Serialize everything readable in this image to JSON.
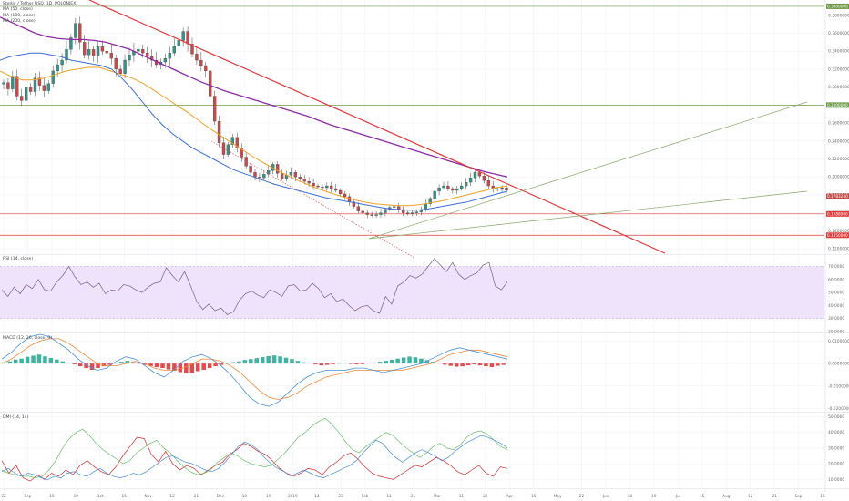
{
  "colors": {
    "bg": "#ffffff",
    "grid": "#eef0f4",
    "axis_text": "#6b6b6b",
    "up": "#3a8f86",
    "down": "#c54b4b",
    "wick": "#444444",
    "ma50": "#3d6fd6",
    "ma100": "#f2a124",
    "ma200": "#8e2aa6",
    "trend_red": "#e03a3a",
    "trend_dotted": "#e05a5a",
    "trend_green": "#8aa86a",
    "hline_green": "#6e9b4a",
    "hline_red": "#e03a3a",
    "rsi_line": "#7a5c8a",
    "rsi_band": "#efe2fb",
    "macd_line": "#4a90d9",
    "signal_line": "#f08a3a",
    "hist_up": "#3fb3a0",
    "hist_down": "#e24b4b",
    "dmi_green": "#6bbf6b",
    "dmi_red": "#d42a2a",
    "dmi_blue": "#4a90d9"
  },
  "legend": {
    "title": "Stellar / Tether USD, 1D, POLONIEX",
    "ma50": "MA (50, close)",
    "ma100": "MA (100, close)",
    "ma200": "MA (200, close)"
  },
  "panes": {
    "rsi_title": "RSI (14, close)",
    "macd_title": "MACD (12, 26, close, 9)",
    "dmi_title": "DMI (14, 14)"
  },
  "price_axis": {
    "ticks": [
      "0.3800000",
      "0.3600000",
      "0.3400000",
      "0.3200000",
      "0.3000000",
      "0.2800000",
      "0.2600000",
      "0.2400000",
      "0.2200000",
      "0.2000000",
      "0.1800000",
      "0.1600000",
      "0.1400000",
      "0.1200000"
    ],
    "top_label": "0.3900000",
    "level_green": "0.2800000",
    "current": "0.1783240",
    "level_red_1": "0.1588000",
    "level_red_2": "0.1350000"
  },
  "rsi_axis": {
    "ticks": [
      "70.0000",
      "60.0000",
      "50.0000",
      "40.0000",
      "30.0000",
      "20.0000"
    ]
  },
  "macd_axis": {
    "ticks": [
      "0.0100000",
      "0.0000000",
      "-0.0100000",
      "-0.0200000"
    ]
  },
  "dmi_axis": {
    "ticks": [
      "50.0000",
      "40.0000",
      "30.0000",
      "20.0000",
      "10.0000"
    ]
  },
  "time_axis": {
    "labels": [
      "22",
      "Sep",
      "10",
      "19",
      "Oct",
      "15",
      "Nov",
      "12",
      "21",
      "Dec",
      "10",
      "19",
      "2019",
      "14",
      "23",
      "Feb",
      "11",
      "21",
      "Mar",
      "11",
      "20",
      "Apr",
      "15",
      "May",
      "22",
      "Jun",
      "10",
      "19",
      "Jul",
      "15",
      "Aug",
      "12",
      "21",
      "Sep",
      "16"
    ]
  },
  "chart_data": [
    {
      "type": "candlestick",
      "title": "Stellar / Tether USD, 1D, POLONIEX",
      "series": [
        {
          "name": "MA (50, close)"
        },
        {
          "name": "MA (100, close)"
        },
        {
          "name": "MA (200, close)"
        }
      ],
      "price_range": [
        0.115,
        0.395
      ],
      "close_path": [
        0.305,
        0.298,
        0.312,
        0.29,
        0.285,
        0.3,
        0.295,
        0.31,
        0.302,
        0.296,
        0.304,
        0.318,
        0.325,
        0.33,
        0.342,
        0.355,
        0.371,
        0.35,
        0.336,
        0.342,
        0.335,
        0.345,
        0.34,
        0.338,
        0.332,
        0.32,
        0.315,
        0.33,
        0.336,
        0.34,
        0.342,
        0.338,
        0.334,
        0.33,
        0.325,
        0.328,
        0.332,
        0.338,
        0.346,
        0.352,
        0.362,
        0.348,
        0.337,
        0.33,
        0.324,
        0.318,
        0.29,
        0.262,
        0.238,
        0.225,
        0.236,
        0.244,
        0.232,
        0.222,
        0.212,
        0.205,
        0.2,
        0.199,
        0.203,
        0.207,
        0.214,
        0.204,
        0.198,
        0.202,
        0.205,
        0.2,
        0.198,
        0.195,
        0.193,
        0.19,
        0.189,
        0.188,
        0.19,
        0.187,
        0.185,
        0.181,
        0.178,
        0.172,
        0.167,
        0.162,
        0.16,
        0.158,
        0.157,
        0.158,
        0.16,
        0.164,
        0.166,
        0.167,
        0.163,
        0.16,
        0.159,
        0.16,
        0.161,
        0.163,
        0.17,
        0.176,
        0.184,
        0.188,
        0.19,
        0.187,
        0.185,
        0.187,
        0.19,
        0.194,
        0.199,
        0.205,
        0.201,
        0.196,
        0.19,
        0.187,
        0.186,
        0.188,
        0.185
      ],
      "ma50": [
        0.33,
        0.334,
        0.336,
        0.338,
        0.338,
        0.336,
        0.334,
        0.33,
        0.328,
        0.326,
        0.324,
        0.32,
        0.31,
        0.298,
        0.284,
        0.27,
        0.258,
        0.248,
        0.24,
        0.232,
        0.226,
        0.22,
        0.214,
        0.208,
        0.204,
        0.2,
        0.196,
        0.192,
        0.189,
        0.186,
        0.183,
        0.18,
        0.177,
        0.175,
        0.173,
        0.171,
        0.169,
        0.167,
        0.165,
        0.164,
        0.163,
        0.163,
        0.164,
        0.166,
        0.168,
        0.17,
        0.172,
        0.175,
        0.178,
        0.181,
        0.184
      ],
      "ma100": [
        0.318,
        0.312,
        0.308,
        0.308,
        0.31,
        0.314,
        0.318,
        0.32,
        0.322,
        0.322,
        0.318,
        0.314,
        0.31,
        0.304,
        0.296,
        0.288,
        0.28,
        0.272,
        0.263,
        0.254,
        0.246,
        0.238,
        0.23,
        0.222,
        0.215,
        0.208,
        0.202,
        0.196,
        0.191,
        0.186,
        0.182,
        0.178,
        0.175,
        0.172,
        0.17,
        0.169,
        0.168,
        0.168,
        0.169,
        0.171,
        0.173,
        0.176,
        0.179,
        0.182,
        0.185,
        0.188,
        0.19
      ],
      "ma200": [
        0.378,
        0.372,
        0.366,
        0.36,
        0.356,
        0.354,
        0.353,
        0.353,
        0.352,
        0.35,
        0.346,
        0.342,
        0.336,
        0.33,
        0.324,
        0.318,
        0.312,
        0.306,
        0.301,
        0.296,
        0.292,
        0.288,
        0.284,
        0.28,
        0.276,
        0.272,
        0.268,
        0.263,
        0.258,
        0.254,
        0.25,
        0.246,
        0.242,
        0.238,
        0.234,
        0.23,
        0.226,
        0.222,
        0.218,
        0.214,
        0.21,
        0.206,
        0.203,
        0.2
      ]
    },
    {
      "type": "line",
      "title": "RSI (14, close)",
      "ylim": [
        20,
        78
      ],
      "band": [
        30,
        70
      ],
      "values": [
        52,
        47,
        54,
        49,
        56,
        53,
        60,
        52,
        51,
        58,
        63,
        70,
        62,
        56,
        58,
        54,
        57,
        49,
        52,
        51,
        56,
        55,
        52,
        50,
        54,
        57,
        58,
        69,
        63,
        58,
        66,
        55,
        43,
        37,
        41,
        36,
        38,
        33,
        35,
        44,
        49,
        51,
        48,
        46,
        52,
        50,
        47,
        55,
        56,
        51,
        52,
        57,
        53,
        46,
        49,
        43,
        45,
        40,
        36,
        39,
        40,
        36,
        34,
        47,
        41,
        55,
        58,
        63,
        61,
        64,
        70,
        76,
        71,
        66,
        73,
        64,
        60,
        63,
        65,
        71,
        73,
        55,
        52,
        58
      ]
    },
    {
      "type": "bar+line",
      "title": "MACD (12, 26, close, 9)",
      "ylim": [
        -0.021,
        0.013
      ],
      "histogram": [
        0.0005,
        0.001,
        0.0018,
        0.0022,
        0.003,
        0.0035,
        0.004,
        0.0032,
        0.0025,
        0.0018,
        0.001,
        0.0002,
        -0.0004,
        -0.0012,
        -0.002,
        -0.0028,
        -0.002,
        -0.0012,
        -0.0006,
        0.0003,
        0.0008,
        0.0012,
        0.0006,
        0.0001,
        -0.0006,
        -0.0011,
        -0.0016,
        -0.002,
        -0.0026,
        -0.0032,
        -0.0038,
        -0.0044,
        -0.004,
        -0.0034,
        -0.0028,
        -0.002,
        -0.0012,
        -0.0006,
        0.0002,
        0.0006,
        0.001,
        0.0016,
        0.002,
        0.0024,
        0.0029,
        0.0033,
        0.0036,
        0.0032,
        0.0026,
        0.002,
        0.0012,
        0.0006,
        0.0002,
        -0.0004,
        -0.0008,
        -0.0006,
        -0.0003,
        0.0001,
        0.0002,
        -0.0002,
        -0.0004,
        -0.0003,
        0.0002,
        0.0005,
        0.0008,
        0.0012,
        0.0017,
        0.0022,
        0.0027,
        0.0031,
        0.0028,
        0.0022,
        0.0015,
        0.0008,
        0.0002,
        -0.0005,
        -0.001,
        -0.0014,
        -0.0012,
        -0.0008,
        -0.0004,
        -0.0008,
        -0.0012,
        -0.0016,
        -0.001,
        -0.0006
      ],
      "macd": [
        0.002,
        0.005,
        0.009,
        0.012,
        0.013,
        0.012,
        0.009,
        0.006,
        0.002,
        -0.001,
        -0.003,
        -0.002,
        0.001,
        0.003,
        0.002,
        -0.001,
        -0.004,
        -0.006,
        -0.003,
        0.001,
        0.003,
        0.004,
        0.002,
        -0.001,
        -0.005,
        -0.01,
        -0.015,
        -0.018,
        -0.019,
        -0.017,
        -0.013,
        -0.009,
        -0.006,
        -0.004,
        -0.003,
        -0.003,
        -0.003,
        -0.002,
        -0.002,
        -0.003,
        -0.004,
        -0.003,
        -0.002,
        -0.001,
        0.0,
        0.002,
        0.004,
        0.006,
        0.007,
        0.006,
        0.005,
        0.004,
        0.003,
        0.002
      ],
      "signal": [
        0.0,
        0.002,
        0.005,
        0.008,
        0.01,
        0.011,
        0.011,
        0.009,
        0.006,
        0.003,
        0.0,
        -0.001,
        -0.001,
        0.0,
        0.001,
        0.0,
        -0.002,
        -0.003,
        -0.003,
        -0.002,
        0.0,
        0.002,
        0.002,
        0.001,
        -0.001,
        -0.004,
        -0.008,
        -0.012,
        -0.015,
        -0.016,
        -0.015,
        -0.013,
        -0.01,
        -0.008,
        -0.006,
        -0.005,
        -0.004,
        -0.003,
        -0.003,
        -0.003,
        -0.003,
        -0.003,
        -0.003,
        -0.002,
        -0.001,
        0.0,
        0.002,
        0.004,
        0.005,
        0.006,
        0.006,
        0.005,
        0.004,
        0.003
      ]
    },
    {
      "type": "line",
      "title": "DMI (14, 14)",
      "ylim": [
        5,
        52
      ],
      "series": [
        {
          "values": [
            22,
            14,
            19,
            11,
            9,
            13,
            10,
            14,
            12,
            16,
            13,
            19,
            22,
            18,
            15,
            13,
            18,
            25,
            31,
            37,
            36,
            26,
            21,
            28,
            20,
            16,
            19,
            17,
            13,
            16,
            19,
            21,
            26,
            29,
            33,
            31,
            28,
            26,
            22,
            17,
            14,
            12,
            14,
            17,
            16,
            13,
            18,
            21,
            25,
            27,
            23,
            18,
            14,
            12,
            11,
            10,
            13,
            16,
            19,
            18,
            21,
            24,
            22,
            19,
            15,
            13,
            16,
            19,
            14,
            12,
            18,
            17
          ]
        },
        {
          "values": [
            16,
            14,
            13,
            12,
            12,
            11,
            12,
            16,
            22,
            30,
            36,
            40,
            42,
            38,
            33,
            29,
            26,
            23,
            20,
            22,
            27,
            30,
            33,
            35,
            30,
            27,
            22,
            18,
            15,
            13,
            14,
            16,
            21,
            24,
            27,
            25,
            22,
            20,
            19,
            18,
            19,
            23,
            27,
            32,
            37,
            40,
            44,
            47,
            49,
            45,
            40,
            34,
            29,
            27,
            31,
            34,
            37,
            40,
            38,
            34,
            30,
            27,
            24,
            27,
            31,
            33,
            30,
            29,
            32,
            37,
            40,
            41,
            39,
            35,
            31,
            29
          ]
        },
        {
          "values": [
            15,
            17,
            14,
            12,
            14,
            13,
            11,
            10,
            12,
            11,
            14,
            15,
            13,
            12,
            15,
            17,
            14,
            12,
            11,
            12,
            14,
            13,
            15,
            18,
            21,
            24,
            25,
            23,
            21,
            20,
            18,
            16,
            15,
            17,
            21,
            26,
            31,
            34,
            32,
            29,
            24,
            20,
            17,
            15,
            12,
            14,
            16,
            14,
            12,
            11,
            13,
            15,
            17,
            19,
            22,
            27,
            31,
            35,
            33,
            28,
            24,
            21,
            24,
            27,
            29,
            27,
            25,
            22,
            24,
            28,
            31,
            34,
            36,
            38,
            37,
            35,
            33,
            30
          ]
        }
      ]
    }
  ]
}
